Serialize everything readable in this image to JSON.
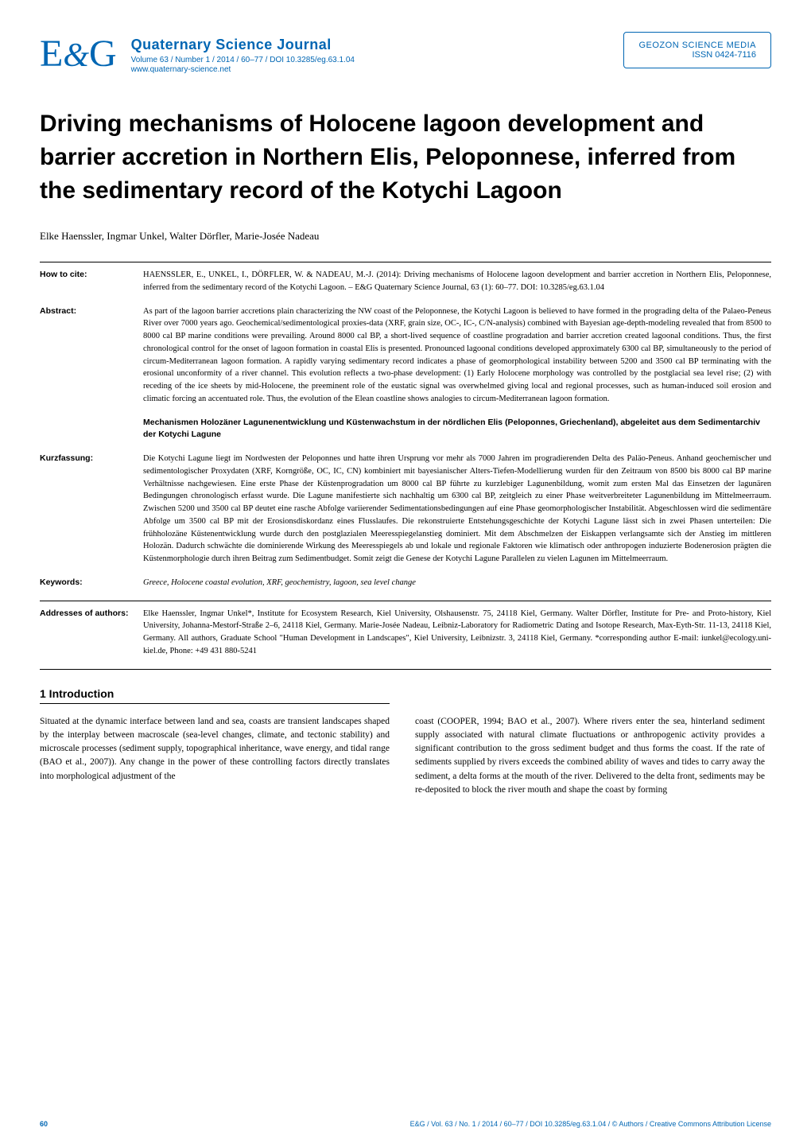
{
  "header": {
    "logo_e": "E",
    "logo_amp": "&",
    "logo_g": "G",
    "journal_title": "Quaternary Science Journal",
    "journal_meta": "Volume 63 / Number 1 / 2014 / 60–77 / DOI 10.3285/eg.63.1.04",
    "journal_link": "www.quaternary-science.net",
    "publisher_name": "GEOZON SCIENCE MEDIA",
    "publisher_issn": "ISSN 0424-7116"
  },
  "article_title": "Driving mechanisms of Holocene lagoon development and barrier accretion in Northern Elis, Peloponnese, inferred from the sedimentary record of the Kotychi Lagoon",
  "authors": "Elke Haenssler, Ingmar Unkel, Walter Dörfler, Marie-Josée Nadeau",
  "how_to_cite": {
    "label": "How to cite:",
    "text": "HAENSSLER, E., UNKEL, I., DÖRFLER, W. & NADEAU, M.-J. (2014): Driving mechanisms of Holocene lagoon development and barrier accretion in Northern Elis, Peloponnese, inferred from the sedimentary record of the Kotychi Lagoon. – E&G Quaternary Science Journal, 63 (1): 60–77. DOI: 10.3285/eg.63.1.04"
  },
  "abstract": {
    "label": "Abstract:",
    "text_en": "As part of the lagoon barrier accretions plain characterizing the NW coast of the Peloponnese, the Kotychi Lagoon is believed to have formed in the prograding delta of the Palaeo-Peneus River over 7000 years ago. Geochemical/sedimentological proxies-data (XRF, grain size, OC-, IC-, C/N-analysis) combined with Bayesian age-depth-modeling revealed that from 8500 to 8000 cal BP marine conditions were prevailing. Around 8000 cal BP, a short-lived sequence of coastline progradation and barrier accretion created lagoonal conditions. Thus, the first chronological control for the onset of lagoon formation in coastal Elis is presented. Pronounced lagoonal conditions developed approximately 6300 cal BP, simultaneously to the period of circum-Mediterranean lagoon formation. A rapidly varying sedimentary record indicates a phase of geomorphological instability between 5200 and 3500 cal BP terminating with the erosional unconformity of a river channel. This evolution reflects a two-phase development: (1) Early Holocene morphology was controlled by the postglacial sea level rise; (2) with receding of the ice sheets by mid-Holocene, the preeminent role of the eustatic signal was overwhelmed giving local and regional processes, such as human-induced soil erosion and climatic forcing an accentuated role. Thus, the evolution of the Elean coastline shows analogies to circum-Mediterranean lagoon formation.",
    "heading_de": "Mechanismen Holozäner Lagunenentwicklung und Küstenwachstum in der nördlichen Elis (Peloponnes, Griechenland), abgeleitet aus dem Sedimentarchiv der Kotychi Lagune"
  },
  "kurzfassung": {
    "label": "Kurzfassung:",
    "text": "Die Kotychi Lagune liegt im Nordwesten der Peloponnes und hatte ihren Ursprung vor mehr als 7000 Jahren im progradierenden Delta des Paläo-Peneus. Anhand geochemischer und sedimentologischer Proxydaten (XRF, Korngröße, OC, IC, CN) kombiniert mit bayesianischer Alters-Tiefen-Modellierung wurden für den Zeitraum von 8500 bis 8000 cal BP marine Verhältnisse nachgewiesen. Eine erste Phase der Küstenprogradation um 8000 cal BP führte zu kurzlebiger Lagunenbildung, womit zum ersten Mal das Einsetzen der lagunären Bedingungen chronologisch erfasst wurde. Die Lagune manifestierte sich nachhaltig um 6300 cal BP, zeitgleich zu einer Phase weitverbreiteter Lagunenbildung im Mittelmeerraum. Zwischen 5200 und 3500 cal BP deutet eine rasche Abfolge variierender Sedimentationsbedingungen auf eine Phase geomorphologischer Instabilität. Abgeschlossen wird die sedimentäre Abfolge um 3500 cal BP mit der Erosionsdiskordanz eines Flusslaufes. Die rekonstruierte Entstehungsgeschichte der Kotychi Lagune lässt sich in zwei Phasen unterteilen: Die frühholozäne Küstenentwicklung wurde durch den postglazialen Meeresspiegelanstieg dominiert. Mit dem Abschmelzen der Eiskappen verlangsamte sich der Anstieg im mittleren Holozän. Dadurch schwächte die dominierende Wirkung des Meeresspiegels ab und lokale und regionale Faktoren wie klimatisch oder anthropogen induzierte Bodenerosion prägten die Küstenmorphologie durch ihren Beitrag zum Sedimentbudget. Somit zeigt die Genese der Kotychi Lagune Parallelen zu vielen Lagunen im Mittelmeerraum."
  },
  "keywords": {
    "label": "Keywords:",
    "text": "Greece, Holocene coastal evolution, XRF, geochemistry, lagoon, sea level change"
  },
  "addresses": {
    "label": "Addresses of authors:",
    "text": "Elke Haenssler, Ingmar Unkel*, Institute for Ecosystem Research, Kiel University, Olshausenstr. 75, 24118 Kiel, Germany. Walter Dörfler, Institute for Pre- and Proto-history, Kiel University, Johanna-Mestorf-Straße 2–6, 24118 Kiel, Germany. Marie-Josée Nadeau, Leibniz-Laboratory for Radiometric Dating and Isotope Research, Max-Eyth-Str. 11-13, 24118 Kiel, Germany. All authors, Graduate School \"Human Development in Landscapes\", Kiel University, Leibnizstr. 3, 24118 Kiel, Germany. *corresponding author E-mail: iunkel@ecology.uni-kiel.de, Phone: +49 431 880-5241"
  },
  "intro": {
    "heading": "1 Introduction",
    "col1": "Situated at the dynamic interface between land and sea, coasts are transient landscapes shaped by the interplay between macroscale (sea-level changes, climate, and tectonic stability) and microscale processes (sediment supply, topographical inheritance, wave energy, and tidal range (BAO et al., 2007)). Any change in the power of these controlling factors directly translates into morphological adjustment of the",
    "col2": "coast (COOPER, 1994; BAO et al., 2007). Where rivers enter the sea, hinterland sediment supply associated with natural climate fluctuations or anthropogenic activity provides a significant contribution to the gross sediment budget and thus forms the coast. If the rate of sediments supplied by rivers exceeds the combined ability of waves and tides to carry away the sediment, a delta forms at the mouth of the river. Delivered to the delta front, sediments may be re-deposited to block the river mouth and shape the coast by forming"
  },
  "footer": {
    "page": "60",
    "cite": "E&G / Vol. 63 / No. 1 / 2014 / 60–77 / DOI 10.3285/eg.63.1.04 / © Authors / Creative Commons Attribution License"
  },
  "colors": {
    "brand_blue": "#0066b3",
    "text_black": "#000000",
    "background": "#ffffff"
  },
  "typography": {
    "title_font": "Arial",
    "body_font": "Georgia",
    "title_size_pt": 30,
    "body_size_pt": 11.5,
    "meta_size_pt": 10.5
  }
}
